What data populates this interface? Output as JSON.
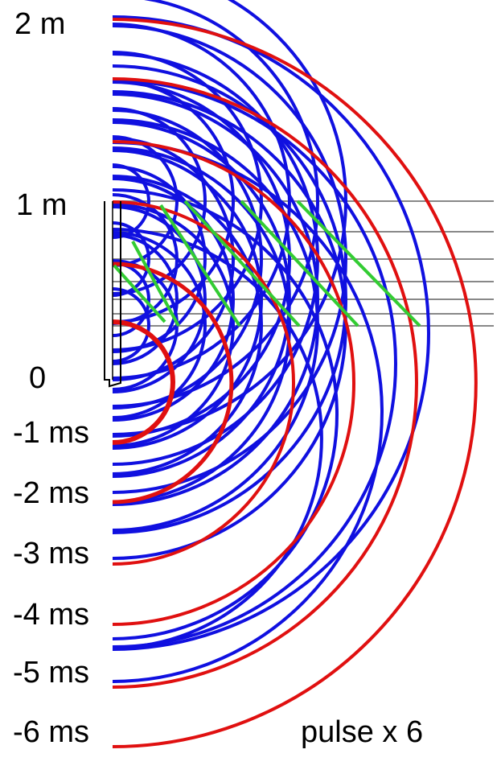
{
  "labels": {
    "top": "2 m",
    "mid": "1 m",
    "zero": "0",
    "t1": "-1 ms",
    "t2": "-2 ms",
    "t3": "-3 ms",
    "t4": "-4 ms",
    "t5": "-5 ms",
    "t6": "-6 ms",
    "caption": "pulse x 6"
  },
  "colors": {
    "blue": "#1010e0",
    "red": "#e01010",
    "green": "#33cc33",
    "gray": "#888888",
    "black": "#000000"
  }
}
